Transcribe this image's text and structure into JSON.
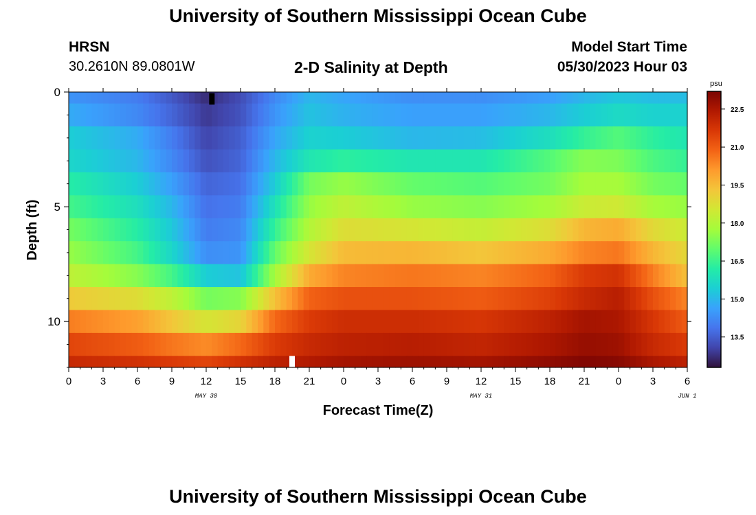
{
  "page": {
    "title": "University of Southern Mississippi Ocean Cube",
    "station": "HRSN",
    "coords": "30.2610N  89.0801W",
    "plot_title": "2-D Salinity at Depth",
    "model_label": "Model Start Time",
    "model_time": "05/30/2023 Hour 03",
    "footer_title": "University of Southern Mississippi Ocean Cube"
  },
  "chart_data": {
    "type": "heatmap",
    "xlabel": "Forecast Time(Z)",
    "ylabel": "Depth (ft)",
    "x_tick_labels": [
      "0",
      "3",
      "6",
      "9",
      "12",
      "15",
      "18",
      "21",
      "0",
      "3",
      "6",
      "9",
      "12",
      "15",
      "18",
      "21",
      "0",
      "3",
      "6"
    ],
    "date_labels": [
      {
        "text": "MAY 30",
        "hour": 12
      },
      {
        "text": "MAY 31",
        "hour": 36
      },
      {
        "text": "JUN 1",
        "hour": 54
      }
    ],
    "x_range_hours": [
      0,
      54
    ],
    "y_ticks": [
      0,
      5,
      10
    ],
    "y_tick_labels": [
      "0",
      "5",
      "10"
    ],
    "ylim": [
      0,
      12
    ],
    "colorbar": {
      "unit": "psu",
      "ticks": [
        13.5,
        15.0,
        16.5,
        18.0,
        19.5,
        21.0,
        22.5
      ],
      "tick_labels": [
        "13.5",
        "15.0",
        "16.5",
        "18.0",
        "19.5",
        "21.0",
        "22.5"
      ],
      "range": [
        12.3,
        23.2
      ]
    },
    "layers": [
      {
        "depth_top": 0.0,
        "depth_bottom": 0.5,
        "keys": [
          [
            0,
            14.4
          ],
          [
            6,
            14.0
          ],
          [
            9,
            13.4
          ],
          [
            12,
            12.7
          ],
          [
            15,
            13.2
          ],
          [
            18,
            14.2
          ],
          [
            21,
            15.0
          ],
          [
            24,
            14.7
          ],
          [
            30,
            14.3
          ],
          [
            36,
            14.3
          ],
          [
            42,
            14.6
          ],
          [
            45,
            15.0
          ],
          [
            48,
            15.3
          ],
          [
            51,
            15.1
          ],
          [
            54,
            15.1
          ]
        ]
      },
      {
        "depth_top": 0.5,
        "depth_bottom": 1.5,
        "keys": [
          [
            0,
            14.8
          ],
          [
            6,
            14.2
          ],
          [
            9,
            13.6
          ],
          [
            12,
            12.9
          ],
          [
            15,
            13.3
          ],
          [
            18,
            14.4
          ],
          [
            21,
            15.2
          ],
          [
            24,
            14.9
          ],
          [
            30,
            14.6
          ],
          [
            36,
            14.6
          ],
          [
            42,
            15.0
          ],
          [
            45,
            15.4
          ],
          [
            48,
            15.7
          ],
          [
            51,
            15.5
          ],
          [
            54,
            15.5
          ]
        ]
      },
      {
        "depth_top": 1.5,
        "depth_bottom": 2.5,
        "keys": [
          [
            0,
            15.4
          ],
          [
            6,
            14.8
          ],
          [
            9,
            14.0
          ],
          [
            12,
            13.1
          ],
          [
            15,
            13.5
          ],
          [
            18,
            14.7
          ],
          [
            21,
            15.5
          ],
          [
            24,
            15.4
          ],
          [
            30,
            15.0
          ],
          [
            36,
            15.1
          ],
          [
            42,
            15.8
          ],
          [
            45,
            16.4
          ],
          [
            48,
            16.8
          ],
          [
            51,
            16.3
          ],
          [
            54,
            16.0
          ]
        ]
      },
      {
        "depth_top": 2.5,
        "depth_bottom": 3.5,
        "keys": [
          [
            0,
            15.6
          ],
          [
            6,
            15.0
          ],
          [
            9,
            14.2
          ],
          [
            12,
            13.3
          ],
          [
            15,
            13.6
          ],
          [
            18,
            15.0
          ],
          [
            21,
            16.0
          ],
          [
            24,
            16.3
          ],
          [
            30,
            16.0
          ],
          [
            36,
            16.0
          ],
          [
            42,
            16.8
          ],
          [
            45,
            17.4
          ],
          [
            48,
            17.3
          ],
          [
            51,
            16.7
          ],
          [
            54,
            16.4
          ]
        ]
      },
      {
        "depth_top": 3.5,
        "depth_bottom": 4.5,
        "keys": [
          [
            0,
            16.2
          ],
          [
            6,
            15.4
          ],
          [
            9,
            14.6
          ],
          [
            12,
            13.6
          ],
          [
            15,
            13.8
          ],
          [
            18,
            15.4
          ],
          [
            21,
            17.2
          ],
          [
            24,
            17.6
          ],
          [
            30,
            17.0
          ],
          [
            36,
            16.8
          ],
          [
            42,
            17.2
          ],
          [
            45,
            17.8
          ],
          [
            48,
            17.8
          ],
          [
            51,
            17.2
          ],
          [
            54,
            17.0
          ]
        ]
      },
      {
        "depth_top": 4.5,
        "depth_bottom": 5.5,
        "keys": [
          [
            0,
            16.6
          ],
          [
            6,
            15.8
          ],
          [
            9,
            15.0
          ],
          [
            12,
            13.8
          ],
          [
            15,
            14.0
          ],
          [
            18,
            15.9
          ],
          [
            21,
            17.6
          ],
          [
            24,
            18.2
          ],
          [
            30,
            17.6
          ],
          [
            36,
            17.4
          ],
          [
            42,
            17.8
          ],
          [
            45,
            18.4
          ],
          [
            48,
            18.5
          ],
          [
            51,
            17.8
          ],
          [
            54,
            17.6
          ]
        ]
      },
      {
        "depth_top": 5.5,
        "depth_bottom": 6.5,
        "keys": [
          [
            0,
            17.2
          ],
          [
            6,
            16.2
          ],
          [
            9,
            15.3
          ],
          [
            12,
            14.0
          ],
          [
            15,
            14.2
          ],
          [
            18,
            16.4
          ],
          [
            21,
            18.0
          ],
          [
            24,
            18.8
          ],
          [
            30,
            18.6
          ],
          [
            36,
            18.3
          ],
          [
            42,
            18.8
          ],
          [
            45,
            19.6
          ],
          [
            48,
            19.8
          ],
          [
            51,
            18.9
          ],
          [
            54,
            18.4
          ]
        ]
      },
      {
        "depth_top": 6.5,
        "depth_bottom": 7.5,
        "keys": [
          [
            0,
            17.6
          ],
          [
            6,
            16.6
          ],
          [
            9,
            15.6
          ],
          [
            12,
            14.3
          ],
          [
            15,
            14.4
          ],
          [
            18,
            17.0
          ],
          [
            21,
            18.6
          ],
          [
            24,
            19.5
          ],
          [
            30,
            19.6
          ],
          [
            36,
            19.3
          ],
          [
            42,
            19.8
          ],
          [
            45,
            20.4
          ],
          [
            48,
            20.6
          ],
          [
            51,
            19.6
          ],
          [
            54,
            18.9
          ]
        ]
      },
      {
        "depth_top": 7.5,
        "depth_bottom": 8.5,
        "keys": [
          [
            0,
            18.2
          ],
          [
            6,
            17.4
          ],
          [
            9,
            16.6
          ],
          [
            12,
            15.4
          ],
          [
            15,
            15.2
          ],
          [
            18,
            17.8
          ],
          [
            21,
            19.8
          ],
          [
            24,
            20.4
          ],
          [
            30,
            20.6
          ],
          [
            36,
            20.4
          ],
          [
            42,
            20.9
          ],
          [
            45,
            21.6
          ],
          [
            48,
            21.8
          ],
          [
            51,
            20.5
          ],
          [
            54,
            19.4
          ]
        ]
      },
      {
        "depth_top": 8.5,
        "depth_bottom": 9.5,
        "keys": [
          [
            0,
            19.2
          ],
          [
            6,
            18.8
          ],
          [
            9,
            18.2
          ],
          [
            12,
            17.2
          ],
          [
            15,
            17.4
          ],
          [
            18,
            19.4
          ],
          [
            21,
            20.9
          ],
          [
            24,
            21.2
          ],
          [
            30,
            21.2
          ],
          [
            36,
            21.0
          ],
          [
            42,
            21.5
          ],
          [
            45,
            22.0
          ],
          [
            48,
            22.3
          ],
          [
            51,
            21.2
          ],
          [
            54,
            20.4
          ]
        ]
      },
      {
        "depth_top": 9.5,
        "depth_bottom": 10.5,
        "keys": [
          [
            0,
            20.5
          ],
          [
            6,
            20.0
          ],
          [
            9,
            19.3
          ],
          [
            12,
            18.6
          ],
          [
            15,
            19.0
          ],
          [
            18,
            20.8
          ],
          [
            21,
            21.6
          ],
          [
            24,
            21.9
          ],
          [
            30,
            21.9
          ],
          [
            36,
            21.7
          ],
          [
            42,
            22.2
          ],
          [
            45,
            22.6
          ],
          [
            48,
            22.5
          ],
          [
            51,
            21.7
          ],
          [
            54,
            21.0
          ]
        ]
      },
      {
        "depth_top": 10.5,
        "depth_bottom": 11.5,
        "keys": [
          [
            0,
            21.4
          ],
          [
            6,
            21.0
          ],
          [
            9,
            20.6
          ],
          [
            12,
            20.3
          ],
          [
            15,
            20.8
          ],
          [
            18,
            21.6
          ],
          [
            21,
            22.0
          ],
          [
            24,
            22.2
          ],
          [
            30,
            22.3
          ],
          [
            36,
            22.1
          ],
          [
            42,
            22.5
          ],
          [
            45,
            22.8
          ],
          [
            48,
            22.7
          ],
          [
            51,
            22.0
          ],
          [
            54,
            21.6
          ]
        ]
      },
      {
        "depth_top": 11.5,
        "depth_bottom": 12.0,
        "keys": [
          [
            0,
            22.0
          ],
          [
            6,
            21.8
          ],
          [
            9,
            21.6
          ],
          [
            12,
            21.4
          ],
          [
            15,
            21.8
          ],
          [
            18,
            22.2
          ],
          [
            21,
            22.4
          ],
          [
            24,
            22.6
          ],
          [
            30,
            22.7
          ],
          [
            36,
            22.6
          ],
          [
            42,
            22.9
          ],
          [
            45,
            23.1
          ],
          [
            48,
            23.0
          ],
          [
            51,
            22.5
          ],
          [
            54,
            22.2
          ]
        ]
      }
    ],
    "markers": [
      {
        "color": "#000000",
        "hour": 12.5,
        "depth_top": 0.05,
        "depth_bottom": 0.55
      },
      {
        "color": "#ffffff",
        "hour": 19.5,
        "depth_top": 11.5,
        "depth_bottom": 12.0
      }
    ],
    "colormap": [
      "#30123b",
      "#4145ab",
      "#4675ed",
      "#39a2fc",
      "#1bcfd4",
      "#24eca6",
      "#61fc6c",
      "#a4fc3b",
      "#d1e834",
      "#f3c63a",
      "#fe9b2d",
      "#f36315",
      "#d93806",
      "#b11901",
      "#7a0402"
    ]
  }
}
